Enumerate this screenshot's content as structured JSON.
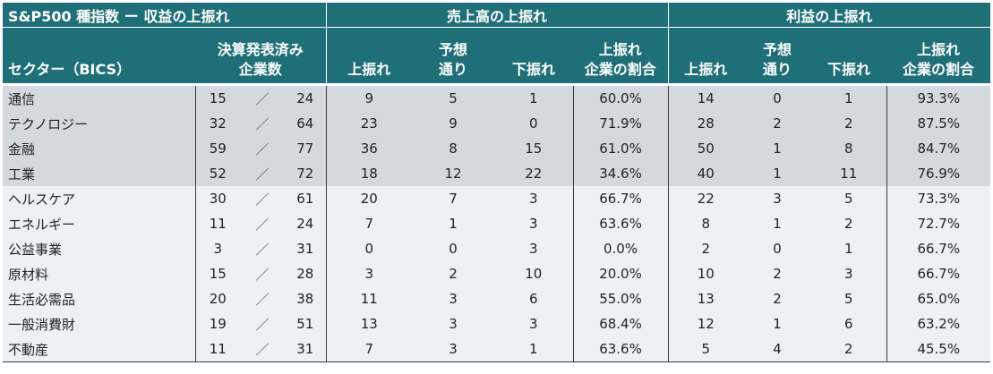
{
  "header": {
    "group_titles": {
      "main": "S&P500 種指数 ー 収益の上振れ",
      "revenue": "売上高の上振れ",
      "profit": "利益の上振れ"
    },
    "sector": "セクター（BICS）",
    "reported": [
      "決算発表済み",
      "企業数"
    ],
    "above": "上振れ",
    "expected": [
      "予想",
      "通り"
    ],
    "below": "下振れ",
    "ratio": [
      "上振れ",
      "企業の割合"
    ]
  },
  "rows": [
    {
      "sector": "通信",
      "reported": "15",
      "slash": "／",
      "total": "24",
      "rev_above": "9",
      "rev_expected": "5",
      "rev_below": "1",
      "rev_ratio": "60.0%",
      "prof_above": "14",
      "prof_expected": "0",
      "prof_below": "1",
      "prof_ratio": "93.3%"
    },
    {
      "sector": "テクノロジー",
      "reported": "32",
      "slash": "／",
      "total": "64",
      "rev_above": "23",
      "rev_expected": "9",
      "rev_below": "0",
      "rev_ratio": "71.9%",
      "prof_above": "28",
      "prof_expected": "2",
      "prof_below": "2",
      "prof_ratio": "87.5%"
    },
    {
      "sector": "金融",
      "reported": "59",
      "slash": "／",
      "total": "77",
      "rev_above": "36",
      "rev_expected": "8",
      "rev_below": "15",
      "rev_ratio": "61.0%",
      "prof_above": "50",
      "prof_expected": "1",
      "prof_below": "8",
      "prof_ratio": "84.7%"
    },
    {
      "sector": "工業",
      "reported": "52",
      "slash": "／",
      "total": "72",
      "rev_above": "18",
      "rev_expected": "12",
      "rev_below": "22",
      "rev_ratio": "34.6%",
      "prof_above": "40",
      "prof_expected": "1",
      "prof_below": "11",
      "prof_ratio": "76.9%"
    },
    {
      "sector": "ヘルスケア",
      "reported": "30",
      "slash": "／",
      "total": "61",
      "rev_above": "20",
      "rev_expected": "7",
      "rev_below": "3",
      "rev_ratio": "66.7%",
      "prof_above": "22",
      "prof_expected": "3",
      "prof_below": "5",
      "prof_ratio": "73.3%"
    },
    {
      "sector": "エネルギー",
      "reported": "11",
      "slash": "／",
      "total": "24",
      "rev_above": "7",
      "rev_expected": "1",
      "rev_below": "3",
      "rev_ratio": "63.6%",
      "prof_above": "8",
      "prof_expected": "1",
      "prof_below": "2",
      "prof_ratio": "72.7%"
    },
    {
      "sector": "公益事業",
      "reported": "3",
      "slash": "／",
      "total": "31",
      "rev_above": "0",
      "rev_expected": "0",
      "rev_below": "3",
      "rev_ratio": "0.0%",
      "prof_above": "2",
      "prof_expected": "0",
      "prof_below": "1",
      "prof_ratio": "66.7%"
    },
    {
      "sector": "原材料",
      "reported": "15",
      "slash": "／",
      "total": "28",
      "rev_above": "3",
      "rev_expected": "2",
      "rev_below": "10",
      "rev_ratio": "20.0%",
      "prof_above": "10",
      "prof_expected": "2",
      "prof_below": "3",
      "prof_ratio": "66.7%"
    },
    {
      "sector": "生活必需品",
      "reported": "20",
      "slash": "／",
      "total": "38",
      "rev_above": "11",
      "rev_expected": "3",
      "rev_below": "6",
      "rev_ratio": "55.0%",
      "prof_above": "13",
      "prof_expected": "2",
      "prof_below": "5",
      "prof_ratio": "65.0%"
    },
    {
      "sector": "一般消費財",
      "reported": "19",
      "slash": "／",
      "total": "51",
      "rev_above": "13",
      "rev_expected": "3",
      "rev_below": "3",
      "rev_ratio": "68.4%",
      "prof_above": "12",
      "prof_expected": "1",
      "prof_below": "6",
      "prof_ratio": "63.2%"
    },
    {
      "sector": "不動産",
      "reported": "11",
      "slash": "／",
      "total": "31",
      "rev_above": "7",
      "rev_expected": "3",
      "rev_below": "1",
      "rev_ratio": "63.6%",
      "prof_above": "5",
      "prof_expected": "4",
      "prof_below": "2",
      "prof_ratio": "45.5%"
    }
  ],
  "colors": {
    "header_bg": "#1f6f78",
    "header_text": "#ffffff",
    "top_rows_bg": "#d2d9df",
    "other_rows_bg": "#eef1f4"
  }
}
